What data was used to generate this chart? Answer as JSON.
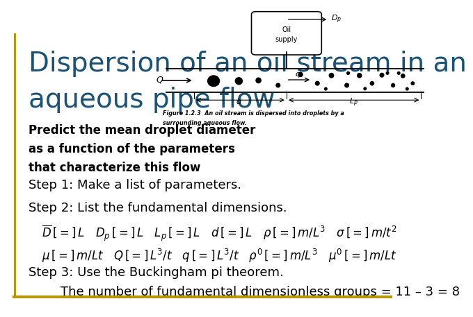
{
  "title_line1": "Dispersion of an oil stream in an",
  "title_line2": "aqueous pipe flow",
  "title_color": "#1a5276",
  "title_fontsize": 28,
  "bg_color": "#ffffff",
  "border_color": "#b8960c",
  "body_text_color": "#000000",
  "predict_line1": "Predict the mean droplet diameter",
  "predict_line2": "as a function of the parameters",
  "predict_line3": "that characterize this flow",
  "predict_fontsize": 12,
  "step1_text": "Step 1: Make a list of parameters.",
  "step2_text": "Step 2: List the fundamental dimensions.",
  "step3_line1": "Step 3: Use the Buckingham pi theorem.",
  "step3_line2": "        The number of fundamental dimensionless groups = 11 - 3 = 8",
  "step_fontsize": 13,
  "eq_fontsize": 12,
  "bottom_line_color": "#b8960c"
}
